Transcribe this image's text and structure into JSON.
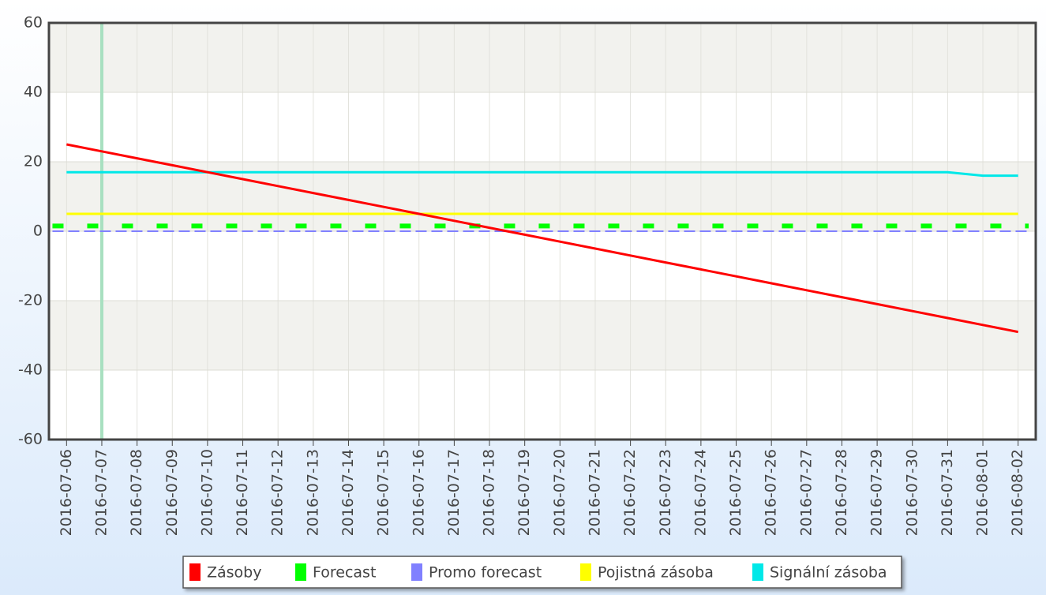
{
  "chart_data": {
    "type": "line",
    "categories": [
      "2016-07-06",
      "2016-07-07",
      "2016-07-08",
      "2016-07-09",
      "2016-07-10",
      "2016-07-11",
      "2016-07-12",
      "2016-07-13",
      "2016-07-14",
      "2016-07-15",
      "2016-07-16",
      "2016-07-17",
      "2016-07-18",
      "2016-07-19",
      "2016-07-20",
      "2016-07-21",
      "2016-07-22",
      "2016-07-23",
      "2016-07-24",
      "2016-07-25",
      "2016-07-26",
      "2016-07-27",
      "2016-07-28",
      "2016-07-29",
      "2016-07-30",
      "2016-07-31",
      "2016-08-01",
      "2016-08-02"
    ],
    "series": [
      {
        "name": "Zásoby",
        "color": "#ff0000",
        "values": [
          25,
          23,
          21,
          19,
          17,
          15,
          13,
          11,
          9,
          7,
          5,
          3,
          1,
          -1,
          -3,
          -5,
          -7,
          -9,
          -11,
          -13,
          -15,
          -17,
          -19,
          -21,
          -23,
          -25,
          -27,
          -29
        ]
      },
      {
        "name": "Forecast",
        "color": "#00ff00",
        "values": [
          1.5,
          1.5,
          1.5,
          1.5,
          1.5,
          1.5,
          1.5,
          1.5,
          1.5,
          1.5,
          1.5,
          1.5,
          1.5,
          1.5,
          1.5,
          1.5,
          1.5,
          1.5,
          1.5,
          1.5,
          1.5,
          1.5,
          1.5,
          1.5,
          1.5,
          1.5,
          1.5,
          1.5
        ]
      },
      {
        "name": "Promo forecast",
        "color": "#8080ff",
        "values": [
          0,
          0,
          0,
          0,
          0,
          0,
          0,
          0,
          0,
          0,
          0,
          0,
          0,
          0,
          0,
          0,
          0,
          0,
          0,
          0,
          0,
          0,
          0,
          0,
          0,
          0,
          0,
          0
        ]
      },
      {
        "name": "Pojistná zásoba",
        "color": "#ffff00",
        "values": [
          5,
          5,
          5,
          5,
          5,
          5,
          5,
          5,
          5,
          5,
          5,
          5,
          5,
          5,
          5,
          5,
          5,
          5,
          5,
          5,
          5,
          5,
          5,
          5,
          5,
          5,
          5,
          5
        ]
      },
      {
        "name": "Signální zásoba",
        "color": "#00e8e8",
        "values": [
          17,
          17,
          17,
          17,
          17,
          17,
          17,
          17,
          17,
          17,
          17,
          17,
          17,
          17,
          17,
          17,
          17,
          17,
          17,
          17,
          17,
          17,
          17,
          17,
          17,
          17,
          16,
          16
        ]
      }
    ],
    "ylim": [
      -60,
      60
    ],
    "yticks": [
      -60,
      -40,
      -20,
      0,
      20,
      40,
      60
    ],
    "grid": true,
    "legend": "bottom"
  }
}
